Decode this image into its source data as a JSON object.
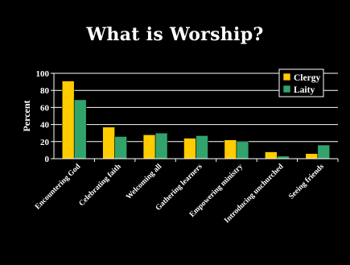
{
  "slide": {
    "title": "What is Worship?"
  },
  "chart_data": {
    "type": "bar",
    "title": "What is Worship?",
    "xlabel": "",
    "ylabel": "Percent",
    "ylim": [
      0,
      100
    ],
    "yticks": [
      0,
      20,
      40,
      60,
      80,
      100
    ],
    "grid": true,
    "legend_position": "top-right",
    "categories": [
      "Encountering God",
      "Celebrating faith",
      "Welcoming all",
      "Gathering learners",
      "Empowering ministry",
      "Introducing unchurched",
      "Seeing friends"
    ],
    "series": [
      {
        "name": "Clergy",
        "color": "#FFCC00",
        "values": [
          91,
          37,
          28,
          24,
          22,
          8,
          6
        ]
      },
      {
        "name": "Laity",
        "color": "#33A36C",
        "values": [
          69,
          26,
          30,
          27,
          20,
          3,
          16
        ]
      }
    ]
  }
}
